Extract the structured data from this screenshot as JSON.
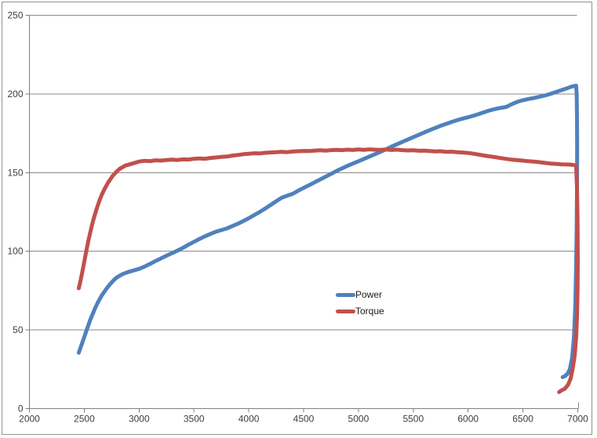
{
  "window": {
    "background": "#ffffff",
    "border_color": "#919191"
  },
  "chart_data": {
    "type": "line",
    "title": "",
    "xlabel": "",
    "ylabel": "",
    "xlim": [
      2000,
      7000
    ],
    "ylim": [
      0,
      250
    ],
    "x_ticks": [
      2000,
      2500,
      3000,
      3500,
      4000,
      4500,
      5000,
      5500,
      6000,
      6500,
      7000
    ],
    "y_ticks": [
      0,
      50,
      100,
      150,
      200,
      250
    ],
    "grid": "horizontal-only",
    "axis_color": "#7f7f7f",
    "gridline_color": "#8a8a8a",
    "tick_label_color": "#3d3d3d",
    "legend": {
      "position": "center-inside-plot",
      "entries": [
        "Power",
        "Torque"
      ]
    },
    "series": [
      {
        "name": "Power",
        "color": "#4F81BD",
        "points": [
          [
            2450,
            35.5
          ],
          [
            2465,
            38.5
          ],
          [
            2480,
            41.5
          ],
          [
            2495,
            44.5
          ],
          [
            2510,
            47.5
          ],
          [
            2525,
            50.5
          ],
          [
            2540,
            53.5
          ],
          [
            2555,
            56.5
          ],
          [
            2570,
            59
          ],
          [
            2585,
            61.5
          ],
          [
            2600,
            64
          ],
          [
            2620,
            67
          ],
          [
            2640,
            69.5
          ],
          [
            2660,
            72
          ],
          [
            2680,
            74
          ],
          [
            2700,
            76
          ],
          [
            2720,
            77.8
          ],
          [
            2740,
            79.5
          ],
          [
            2760,
            81
          ],
          [
            2780,
            82.3
          ],
          [
            2800,
            83.5
          ],
          [
            2850,
            85.5
          ],
          [
            2900,
            86.8
          ],
          [
            2950,
            87.8
          ],
          [
            3000,
            88.8
          ],
          [
            3050,
            90.3
          ],
          [
            3100,
            92
          ],
          [
            3150,
            93.8
          ],
          [
            3200,
            95.5
          ],
          [
            3250,
            97.2
          ],
          [
            3300,
            98.8
          ],
          [
            3350,
            100.4
          ],
          [
            3400,
            102.2
          ],
          [
            3450,
            104.2
          ],
          [
            3500,
            106
          ],
          [
            3550,
            107.8
          ],
          [
            3600,
            109.5
          ],
          [
            3650,
            111
          ],
          [
            3700,
            112.4
          ],
          [
            3750,
            113.5
          ],
          [
            3800,
            114.5
          ],
          [
            3850,
            116
          ],
          [
            3900,
            117.5
          ],
          [
            3950,
            119.2
          ],
          [
            4000,
            121
          ],
          [
            4050,
            123
          ],
          [
            4100,
            125
          ],
          [
            4150,
            127.2
          ],
          [
            4200,
            129.5
          ],
          [
            4250,
            131.8
          ],
          [
            4300,
            134
          ],
          [
            4350,
            135.3
          ],
          [
            4400,
            136.5
          ],
          [
            4450,
            138.5
          ],
          [
            4500,
            140.3
          ],
          [
            4550,
            142
          ],
          [
            4600,
            143.8
          ],
          [
            4650,
            145.6
          ],
          [
            4700,
            147.4
          ],
          [
            4750,
            149.2
          ],
          [
            4800,
            151
          ],
          [
            4850,
            152.7
          ],
          [
            4900,
            154.3
          ],
          [
            4950,
            155.8
          ],
          [
            5000,
            157.2
          ],
          [
            5050,
            158.7
          ],
          [
            5100,
            160.2
          ],
          [
            5150,
            161.7
          ],
          [
            5200,
            163.2
          ],
          [
            5250,
            164.8
          ],
          [
            5300,
            166.5
          ],
          [
            5350,
            168
          ],
          [
            5400,
            169.5
          ],
          [
            5450,
            171
          ],
          [
            5500,
            172.5
          ],
          [
            5550,
            174
          ],
          [
            5600,
            175.5
          ],
          [
            5650,
            177
          ],
          [
            5700,
            178.4
          ],
          [
            5750,
            179.8
          ],
          [
            5800,
            181
          ],
          [
            5850,
            182.2
          ],
          [
            5900,
            183.3
          ],
          [
            5950,
            184.3
          ],
          [
            6000,
            185.2
          ],
          [
            6050,
            186.2
          ],
          [
            6100,
            187.3
          ],
          [
            6150,
            188.5
          ],
          [
            6200,
            189.6
          ],
          [
            6250,
            190.5
          ],
          [
            6300,
            191.2
          ],
          [
            6350,
            191.8
          ],
          [
            6400,
            193.6
          ],
          [
            6450,
            195
          ],
          [
            6500,
            196
          ],
          [
            6550,
            196.8
          ],
          [
            6600,
            197.4
          ],
          [
            6650,
            198.2
          ],
          [
            6700,
            199
          ],
          [
            6750,
            200
          ],
          [
            6800,
            201.2
          ],
          [
            6850,
            202.4
          ],
          [
            6900,
            203.6
          ],
          [
            6950,
            204.8
          ],
          [
            6985,
            205.3
          ],
          [
            6990,
            200
          ],
          [
            6993,
            185
          ],
          [
            6994,
            165
          ],
          [
            6993,
            140
          ],
          [
            6990,
            115
          ],
          [
            6985,
            90
          ],
          [
            6977,
            65
          ],
          [
            6965,
            45
          ],
          [
            6948,
            32
          ],
          [
            6928,
            25
          ],
          [
            6905,
            22
          ],
          [
            6880,
            20.5
          ],
          [
            6862,
            20
          ]
        ]
      },
      {
        "name": "Torque",
        "color": "#C0504D",
        "points": [
          [
            2450,
            76.5
          ],
          [
            2465,
            81
          ],
          [
            2480,
            86
          ],
          [
            2495,
            91.5
          ],
          [
            2510,
            97
          ],
          [
            2525,
            102.5
          ],
          [
            2540,
            107.5
          ],
          [
            2555,
            112
          ],
          [
            2570,
            116.5
          ],
          [
            2585,
            120.5
          ],
          [
            2600,
            124
          ],
          [
            2620,
            128.5
          ],
          [
            2640,
            132.5
          ],
          [
            2660,
            136
          ],
          [
            2680,
            139
          ],
          [
            2700,
            141.5
          ],
          [
            2720,
            144
          ],
          [
            2740,
            146
          ],
          [
            2760,
            148
          ],
          [
            2780,
            149.5
          ],
          [
            2800,
            151
          ],
          [
            2825,
            152.5
          ],
          [
            2850,
            153.5
          ],
          [
            2875,
            154.5
          ],
          [
            2900,
            155
          ],
          [
            2950,
            156
          ],
          [
            3000,
            157
          ],
          [
            3050,
            157.5
          ],
          [
            3100,
            157.3
          ],
          [
            3150,
            157.8
          ],
          [
            3200,
            157.6
          ],
          [
            3250,
            158
          ],
          [
            3300,
            158.2
          ],
          [
            3350,
            158
          ],
          [
            3400,
            158.4
          ],
          [
            3450,
            158.3
          ],
          [
            3500,
            158.8
          ],
          [
            3550,
            159
          ],
          [
            3600,
            158.8
          ],
          [
            3650,
            159.3
          ],
          [
            3700,
            159.6
          ],
          [
            3750,
            160
          ],
          [
            3800,
            160.2
          ],
          [
            3850,
            160.8
          ],
          [
            3900,
            161.2
          ],
          [
            3950,
            161.7
          ],
          [
            4000,
            162
          ],
          [
            4050,
            162.3
          ],
          [
            4100,
            162.2
          ],
          [
            4150,
            162.6
          ],
          [
            4200,
            162.8
          ],
          [
            4250,
            163
          ],
          [
            4300,
            163.2
          ],
          [
            4350,
            163
          ],
          [
            4400,
            163.4
          ],
          [
            4450,
            163.6
          ],
          [
            4500,
            163.8
          ],
          [
            4550,
            163.7
          ],
          [
            4600,
            164
          ],
          [
            4650,
            164.2
          ],
          [
            4700,
            164
          ],
          [
            4750,
            164.3
          ],
          [
            4800,
            164.5
          ],
          [
            4850,
            164.3
          ],
          [
            4900,
            164.6
          ],
          [
            4950,
            164.4
          ],
          [
            5000,
            164.7
          ],
          [
            5050,
            164.5
          ],
          [
            5100,
            164.8
          ],
          [
            5150,
            164.6
          ],
          [
            5200,
            164.5
          ],
          [
            5250,
            164.7
          ],
          [
            5300,
            164.4
          ],
          [
            5350,
            164.6
          ],
          [
            5400,
            164.3
          ],
          [
            5450,
            164.1
          ],
          [
            5500,
            164.2
          ],
          [
            5550,
            163.9
          ],
          [
            5600,
            164
          ],
          [
            5650,
            163.7
          ],
          [
            5700,
            163.5
          ],
          [
            5750,
            163.6
          ],
          [
            5800,
            163.2
          ],
          [
            5850,
            163.3
          ],
          [
            5900,
            163
          ],
          [
            5950,
            162.8
          ],
          [
            6000,
            162.5
          ],
          [
            6050,
            162
          ],
          [
            6100,
            161.4
          ],
          [
            6150,
            160.8
          ],
          [
            6200,
            160.3
          ],
          [
            6250,
            159.8
          ],
          [
            6300,
            159.2
          ],
          [
            6350,
            158.7
          ],
          [
            6400,
            158.2
          ],
          [
            6450,
            157.9
          ],
          [
            6500,
            157.6
          ],
          [
            6550,
            157.2
          ],
          [
            6600,
            157
          ],
          [
            6650,
            156.6
          ],
          [
            6700,
            156.2
          ],
          [
            6750,
            155.8
          ],
          [
            6800,
            155.6
          ],
          [
            6850,
            155.3
          ],
          [
            6900,
            155.2
          ],
          [
            6950,
            155
          ],
          [
            6985,
            154.5
          ],
          [
            6993,
            140
          ],
          [
            6998,
            120
          ],
          [
            7000,
            95
          ],
          [
            6998,
            75
          ],
          [
            6993,
            58
          ],
          [
            6985,
            45
          ],
          [
            6972,
            34
          ],
          [
            6955,
            26
          ],
          [
            6935,
            19
          ],
          [
            6910,
            15
          ],
          [
            6880,
            12.5
          ],
          [
            6850,
            11.5
          ],
          [
            6830,
            10.5
          ]
        ]
      }
    ]
  }
}
